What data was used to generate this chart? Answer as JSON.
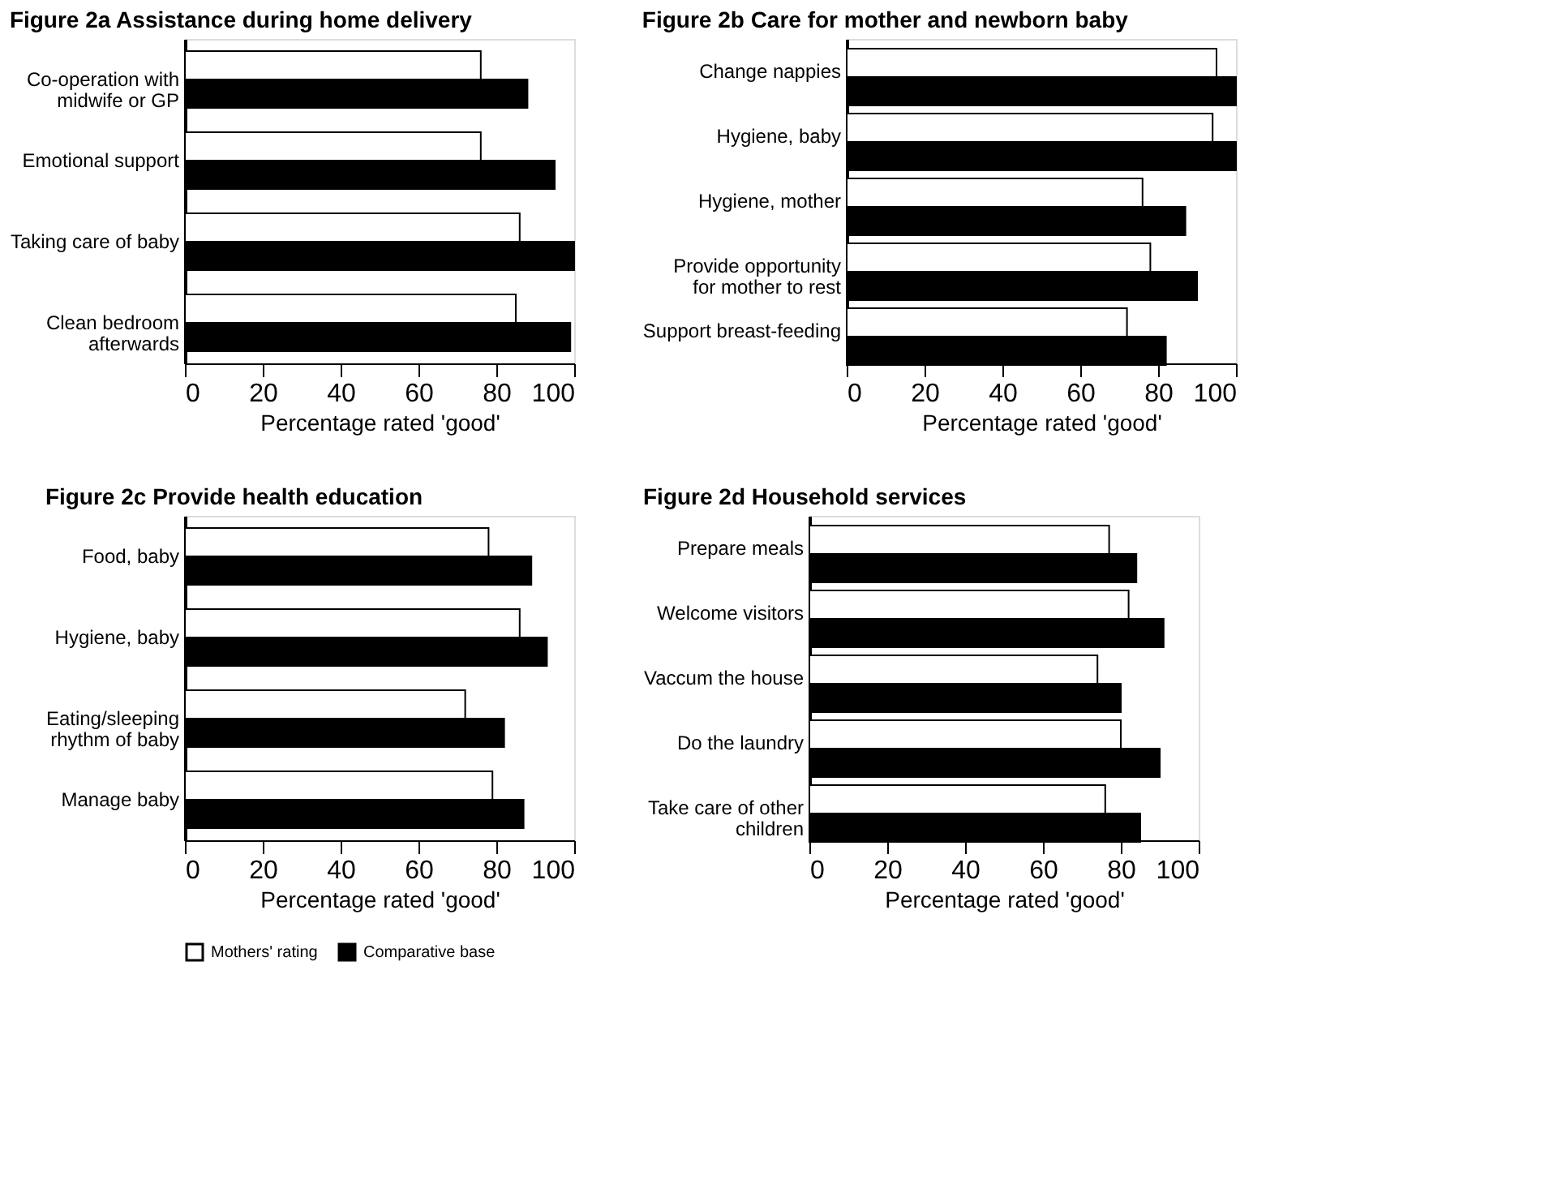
{
  "chart_data": [
    {
      "type": "bar",
      "orientation": "horizontal",
      "title": "Figure 2a  Assistance during home delivery",
      "xlabel": "Percentage rated 'good'",
      "categories": [
        "Co-operation with\nmidwife or GP",
        "Emotional support",
        "Taking care of baby",
        "Clean bedroom\nafterwards"
      ],
      "xlim": [
        0,
        100
      ],
      "xticks": [
        0,
        20,
        40,
        60,
        80,
        100
      ],
      "grid": false,
      "legend": "bottom",
      "series": [
        {
          "name": "Mothers' rating",
          "color": "#ffffff",
          "values": [
            76,
            76,
            86,
            85
          ]
        },
        {
          "name": "Comparative base",
          "color": "#000000",
          "values": [
            88,
            95,
            100,
            99
          ]
        }
      ]
    },
    {
      "type": "bar",
      "orientation": "horizontal",
      "title": "Figure 2b  Care for mother and newborn baby",
      "xlabel": "Percentage rated 'good'",
      "categories": [
        "Change nappies",
        "Hygiene, baby",
        "Hygiene, mother",
        "Provide opportunity\nfor mother to rest",
        "Support breast-feeding"
      ],
      "xlim": [
        0,
        100
      ],
      "xticks": [
        0,
        20,
        40,
        60,
        80,
        100
      ],
      "grid": false,
      "legend": "bottom",
      "series": [
        {
          "name": "Mothers' rating",
          "color": "#ffffff",
          "values": [
            95,
            94,
            76,
            78,
            72
          ]
        },
        {
          "name": "Comparative base",
          "color": "#000000",
          "values": [
            100,
            100,
            87,
            90,
            82
          ]
        }
      ]
    },
    {
      "type": "bar",
      "orientation": "horizontal",
      "title": "Figure 2c  Provide health education",
      "xlabel": "Percentage rated 'good'",
      "categories": [
        "Food, baby",
        "Hygiene, baby",
        "Eating/sleeping\nrhythm of baby",
        "Manage baby"
      ],
      "xlim": [
        0,
        100
      ],
      "xticks": [
        0,
        20,
        40,
        60,
        80,
        100
      ],
      "grid": false,
      "legend": "bottom",
      "series": [
        {
          "name": "Mothers' rating",
          "color": "#ffffff",
          "values": [
            78,
            86,
            72,
            79
          ]
        },
        {
          "name": "Comparative base",
          "color": "#000000",
          "values": [
            89,
            93,
            82,
            87
          ]
        }
      ]
    },
    {
      "type": "bar",
      "orientation": "horizontal",
      "title": "Figure 2d  Household services",
      "xlabel": "Percentage rated 'good'",
      "categories": [
        "Prepare meals",
        "Welcome visitors",
        "Vaccum the house",
        "Do the laundry",
        "Take care of other\nchildren"
      ],
      "xlim": [
        0,
        100
      ],
      "xticks": [
        0,
        20,
        40,
        60,
        80,
        100
      ],
      "grid": false,
      "legend": "bottom",
      "series": [
        {
          "name": "Mothers' rating",
          "color": "#ffffff",
          "values": [
            77,
            82,
            74,
            80,
            76
          ]
        },
        {
          "name": "Comparative base",
          "color": "#000000",
          "values": [
            84,
            91,
            80,
            90,
            85
          ]
        }
      ]
    }
  ]
}
